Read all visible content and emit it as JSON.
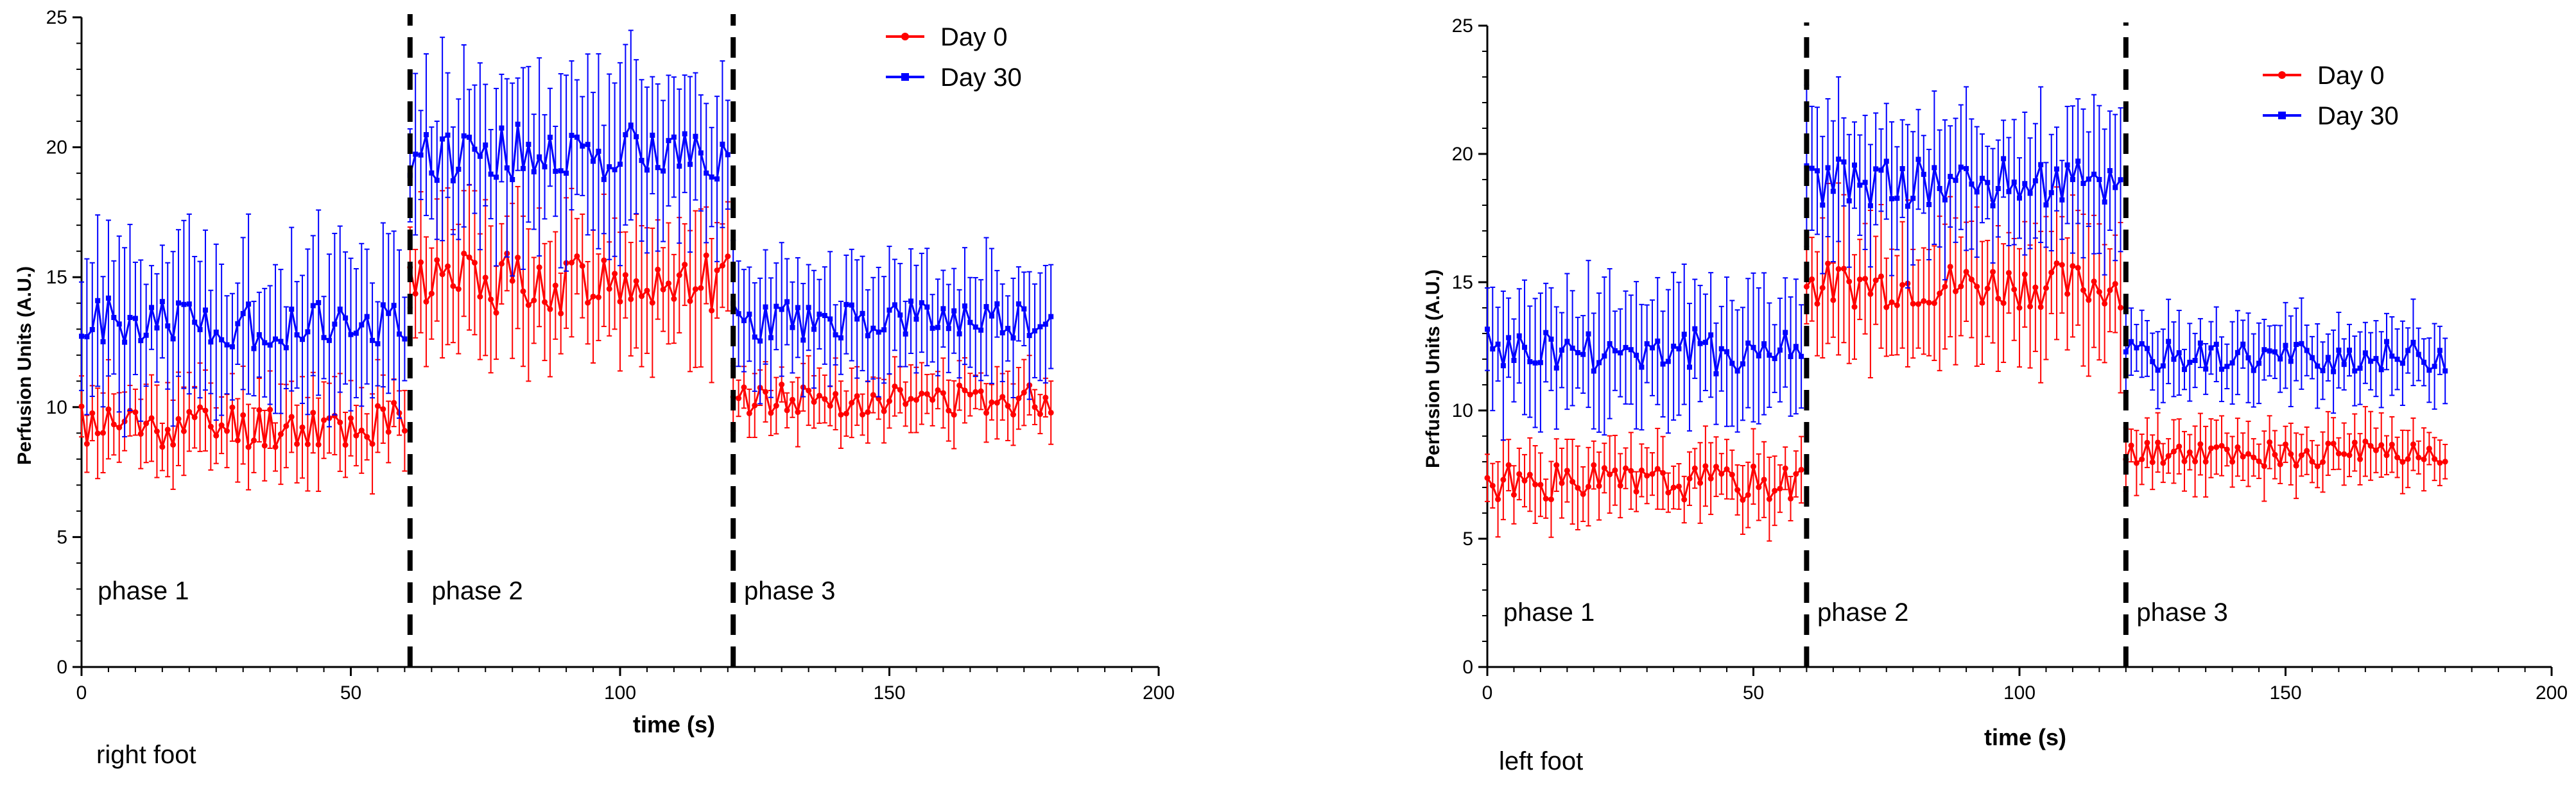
{
  "chart_data": [
    {
      "id": "right",
      "type": "line",
      "caption": "right foot",
      "xlabel": "time (s)",
      "ylabel": "Perfusion Units (A.U.)",
      "xlim": [
        0,
        200
      ],
      "ylim": [
        0,
        25
      ],
      "x_ticks": [
        0,
        50,
        100,
        150,
        200
      ],
      "y_ticks": [
        0,
        5,
        10,
        15,
        20,
        25
      ],
      "phase_boundaries": [
        61,
        121
      ],
      "phases": [
        {
          "label": "phase 1",
          "x": 3,
          "y": 2.6
        },
        {
          "label": "phase 2",
          "x": 65,
          "y": 2.6
        },
        {
          "label": "phase 3",
          "x": 123,
          "y": 2.6
        }
      ],
      "legend": [
        {
          "name": "Day 0",
          "color": "#ff0000",
          "marker": "circle"
        },
        {
          "name": "Day 30",
          "color": "#0000ff",
          "marker": "square"
        }
      ],
      "series": [
        {
          "name": "Day 0",
          "color": "#ff0000",
          "segments": [
            {
              "x_start": 0,
              "x_end": 60,
              "mean": 9.3,
              "amp": 0.9,
              "err": 1.4,
              "seed": 11
            },
            {
              "x_start": 61,
              "x_end": 120,
              "mean": 14.8,
              "amp": 1.2,
              "err": 2.3,
              "seed": 12
            },
            {
              "x_start": 121,
              "x_end": 180,
              "mean": 10.3,
              "amp": 0.6,
              "err": 1.0,
              "seed": 13
            }
          ]
        },
        {
          "name": "Day 30",
          "color": "#0000ff",
          "segments": [
            {
              "x_start": 0,
              "x_end": 60,
              "mean": 13.2,
              "amp": 1.0,
              "err": 2.6,
              "seed": 21
            },
            {
              "x_start": 61,
              "x_end": 120,
              "mean": 19.8,
              "amp": 1.1,
              "err": 2.8,
              "seed": 22
            },
            {
              "x_start": 121,
              "x_end": 180,
              "mean": 13.3,
              "amp": 0.8,
              "err": 1.9,
              "seed": 23
            }
          ]
        }
      ]
    },
    {
      "id": "left",
      "type": "line",
      "caption": "left foot",
      "xlabel": "time (s)",
      "ylabel": "Perfusion Units (A.U.)",
      "xlim": [
        0,
        200
      ],
      "ylim": [
        0,
        25
      ],
      "x_ticks": [
        0,
        50,
        100,
        150,
        200
      ],
      "y_ticks": [
        0,
        5,
        10,
        15,
        20,
        25
      ],
      "phase_boundaries": [
        60,
        120
      ],
      "phases": [
        {
          "label": "phase 1",
          "x": 3,
          "y": 1.8
        },
        {
          "label": "phase 2",
          "x": 62,
          "y": 1.8
        },
        {
          "label": "phase 3",
          "x": 122,
          "y": 1.8
        }
      ],
      "legend": [
        {
          "name": "Day 0",
          "color": "#ff0000",
          "marker": "circle"
        },
        {
          "name": "Day 30",
          "color": "#0000ff",
          "marker": "square"
        }
      ],
      "series": [
        {
          "name": "Day 0",
          "color": "#ff0000",
          "segments": [
            {
              "x_start": 0,
              "x_end": 59,
              "mean": 7.2,
              "amp": 0.7,
              "err": 1.2,
              "seed": 31
            },
            {
              "x_start": 60,
              "x_end": 119,
              "mean": 14.9,
              "amp": 0.9,
              "err": 2.4,
              "seed": 32
            },
            {
              "x_start": 120,
              "x_end": 180,
              "mean": 8.3,
              "amp": 0.5,
              "err": 1.0,
              "seed": 33
            }
          ]
        },
        {
          "name": "Day 30",
          "color": "#0000ff",
          "segments": [
            {
              "x_start": 0,
              "x_end": 59,
              "mean": 12.3,
              "amp": 0.9,
              "err": 2.2,
              "seed": 41
            },
            {
              "x_start": 60,
              "x_end": 119,
              "mean": 18.9,
              "amp": 1.0,
              "err": 2.3,
              "seed": 42
            },
            {
              "x_start": 120,
              "x_end": 180,
              "mean": 12.1,
              "amp": 0.6,
              "err": 1.3,
              "seed": 43
            }
          ]
        }
      ]
    }
  ]
}
